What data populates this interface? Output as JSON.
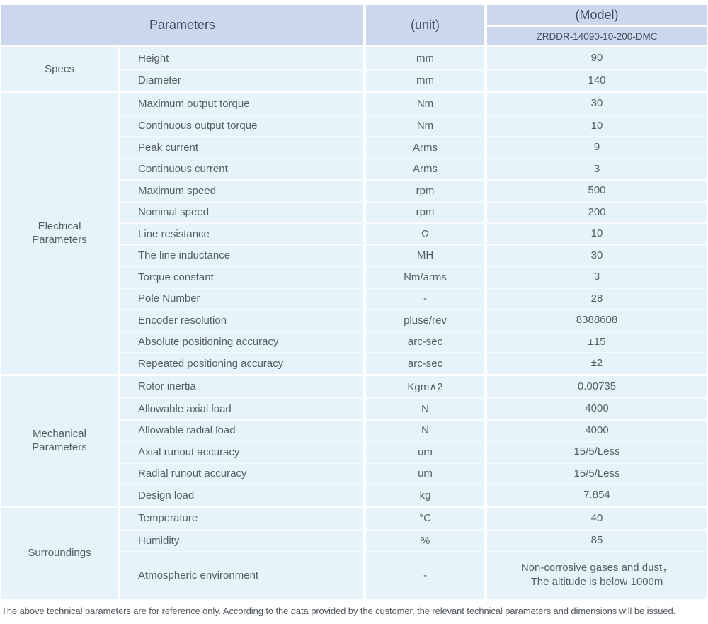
{
  "colors": {
    "header_bg": "#ccd6ec",
    "cell_bg": "#e6f3fb",
    "row_divider": "#f7fbfe",
    "header_text": "#464f5c",
    "body_text": "#555d66"
  },
  "header": {
    "parameters_label": "Parameters",
    "unit_label": "(unit)",
    "model_label": "(Model)",
    "model_value": "ZRDDR-14090-10-200-DMC"
  },
  "sections": [
    {
      "category": "Specs",
      "rows": [
        {
          "param": "Height",
          "unit": "mm",
          "value": "90"
        },
        {
          "param": "Diameter",
          "unit": "mm",
          "value": "140"
        }
      ]
    },
    {
      "category": "Electrical\nParameters",
      "rows": [
        {
          "param": "Maximum output torque",
          "unit": "Nm",
          "value": "30"
        },
        {
          "param": "Continuous output torque",
          "unit": "Nm",
          "value": "10"
        },
        {
          "param": "Peak current",
          "unit": "Arms",
          "value": "9"
        },
        {
          "param": "Continuous current",
          "unit": "Arms",
          "value": "3"
        },
        {
          "param": "Maximum speed",
          "unit": "rpm",
          "value": "500"
        },
        {
          "param": "Nominal speed",
          "unit": "rpm",
          "value": "200"
        },
        {
          "param": "Line resistance",
          "unit": "Ω",
          "value": "10"
        },
        {
          "param": "The line inductance",
          "unit": "MH",
          "value": "30"
        },
        {
          "param": "Torque constant",
          "unit": "Nm/arms",
          "value": "3"
        },
        {
          "param": "Pole Number",
          "unit": "-",
          "value": "28"
        },
        {
          "param": "Encoder resolution",
          "unit": "pluse/rev",
          "value": "8388608"
        },
        {
          "param": "Absolute positioning accuracy",
          "unit": "arc-sec",
          "value": "±15"
        },
        {
          "param": "Repeated positioning accuracy",
          "unit": "arc-sec",
          "value": "±2"
        }
      ]
    },
    {
      "category": "Mechanical\nParameters",
      "rows": [
        {
          "param": "Rotor inertia",
          "unit": "Kgm∧2",
          "value": "0.00735"
        },
        {
          "param": "Allowable axial load",
          "unit": "N",
          "value": "4000"
        },
        {
          "param": "Allowable radial load",
          "unit": "N",
          "value": "4000"
        },
        {
          "param": "Axial runout accuracy",
          "unit": "um",
          "value": "15/5/Less"
        },
        {
          "param": "Radial runout accuracy",
          "unit": "um",
          "value": "15/5/Less"
        },
        {
          "param": "Design load",
          "unit": "kg",
          "value": "7.854"
        }
      ]
    },
    {
      "category": "Surroundings",
      "rows": [
        {
          "param": "Temperature",
          "unit": "°C",
          "value": "40"
        },
        {
          "param": "Humidity",
          "unit": "%",
          "value": "85"
        },
        {
          "param": "Atmospheric environment",
          "unit": "-",
          "value": "Non-corrosive gases and dust，\nThe altitude is below 1000m"
        }
      ]
    }
  ],
  "footer": {
    "note": "The above technical parameters are for reference only. According to the data provided by the customer, the relevant technical parameters and dimensions will be issued."
  }
}
